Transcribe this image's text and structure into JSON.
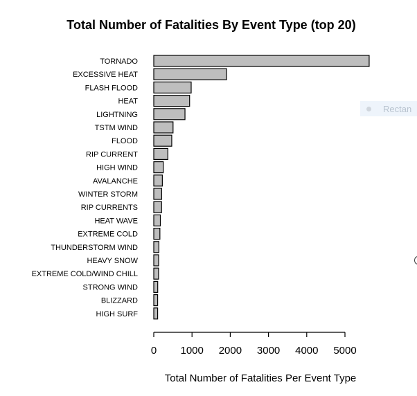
{
  "chart_data": {
    "type": "bar",
    "orientation": "horizontal",
    "title": "Total Number of Fatalities By Event Type (top 20)",
    "xlabel": "Total Number of Fatalities Per Event Type",
    "ylabel": "",
    "categories": [
      "TORNADO",
      "EXCESSIVE HEAT",
      "FLASH FLOOD",
      "HEAT",
      "LIGHTNING",
      "TSTM WIND",
      "FLOOD",
      "RIP CURRENT",
      "HIGH WIND",
      "AVALANCHE",
      "WINTER STORM",
      "RIP CURRENTS",
      "HEAT WAVE",
      "EXTREME COLD",
      "THUNDERSTORM WIND",
      "HEAVY SNOW",
      "EXTREME COLD/WIND CHILL",
      "STRONG WIND",
      "BLIZZARD",
      "HIGH SURF"
    ],
    "values": [
      5633,
      1903,
      978,
      937,
      816,
      504,
      470,
      368,
      248,
      224,
      206,
      204,
      172,
      160,
      133,
      127,
      125,
      103,
      101,
      101
    ],
    "xlim": [
      0,
      5633
    ],
    "xticks": [
      0,
      1000,
      2000,
      3000,
      4000,
      5000
    ],
    "bar_fill": "#bebebe",
    "bar_stroke": "#000000",
    "grid": false
  },
  "overlay": {
    "label": "Rectan"
  }
}
